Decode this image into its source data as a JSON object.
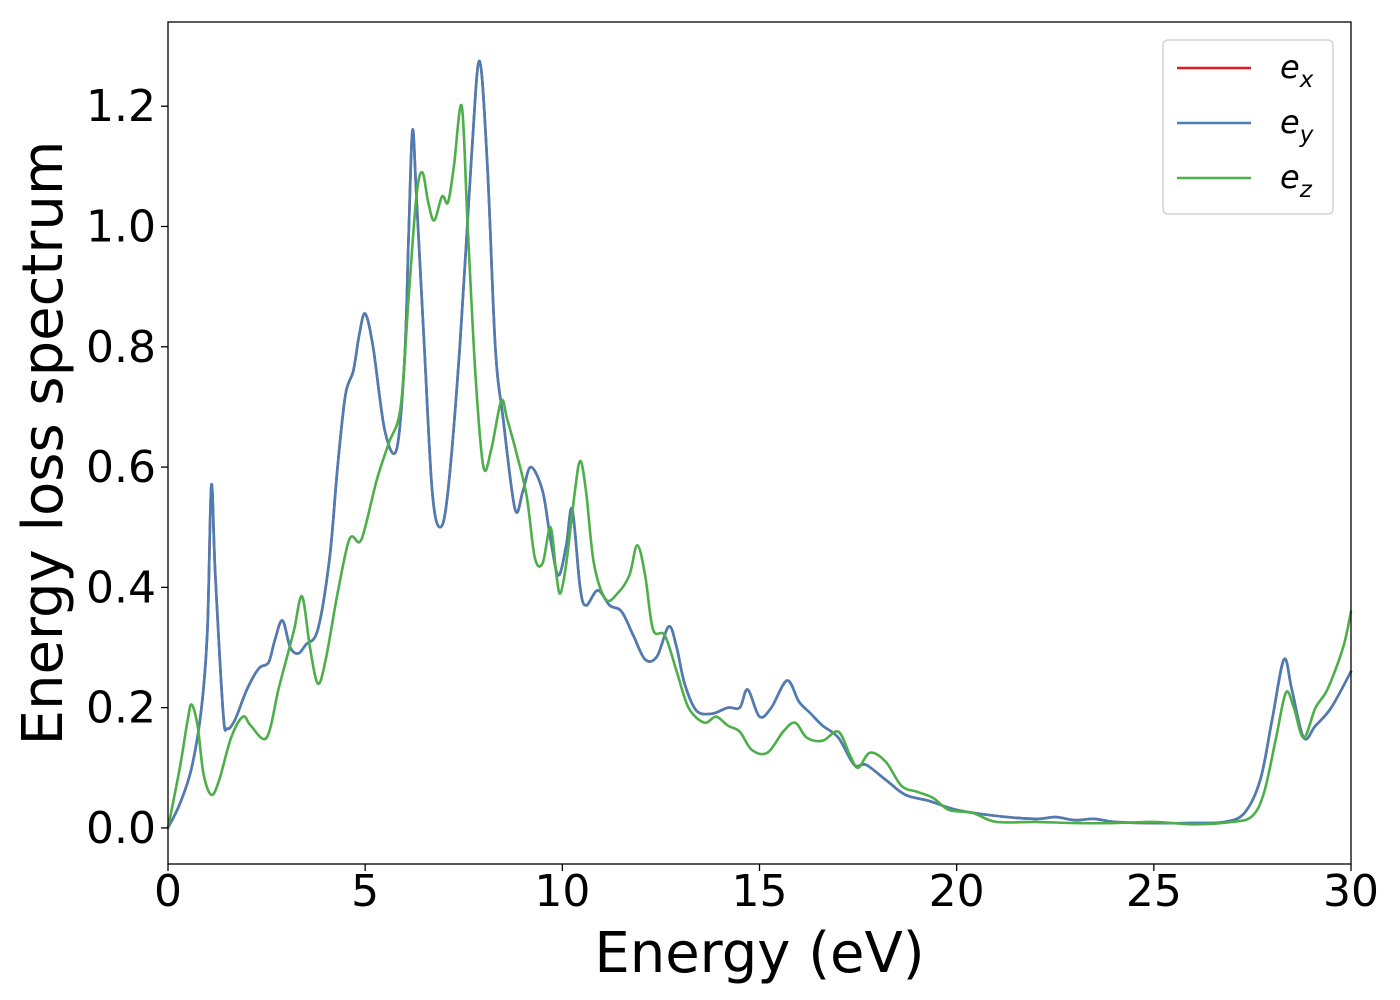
{
  "chart_data": {
    "type": "line",
    "xlabel": "Energy (eV)",
    "ylabel": "Energy loss spectrum",
    "xlim": [
      0,
      30
    ],
    "ylim": [
      -0.06,
      1.34
    ],
    "xticks": [
      0,
      5,
      10,
      15,
      20,
      25,
      30
    ],
    "xtick_labels": [
      "0",
      "5",
      "10",
      "15",
      "20",
      "25",
      "30"
    ],
    "yticks": [
      0.0,
      0.2,
      0.4,
      0.6,
      0.8,
      1.0,
      1.2
    ],
    "ytick_labels": [
      "0.0",
      "0.2",
      "0.4",
      "0.6",
      "0.8",
      "1.0",
      "1.2"
    ],
    "grid": false,
    "legend_position": "top-right",
    "series": [
      {
        "name": "e_x",
        "legend_base": "e",
        "legend_sub": "x",
        "color": "#e41a1c",
        "points": [
          [
            0,
            0
          ],
          [
            0.3,
            0.04
          ],
          [
            0.6,
            0.1
          ],
          [
            0.85,
            0.2
          ],
          [
            1.0,
            0.33
          ],
          [
            1.1,
            0.57
          ],
          [
            1.2,
            0.42
          ],
          [
            1.4,
            0.19
          ],
          [
            1.5,
            0.165
          ],
          [
            1.7,
            0.18
          ],
          [
            2.0,
            0.23
          ],
          [
            2.3,
            0.265
          ],
          [
            2.55,
            0.275
          ],
          [
            2.7,
            0.31
          ],
          [
            2.9,
            0.345
          ],
          [
            3.1,
            0.3
          ],
          [
            3.3,
            0.29
          ],
          [
            3.5,
            0.305
          ],
          [
            3.8,
            0.33
          ],
          [
            4.1,
            0.45
          ],
          [
            4.3,
            0.6
          ],
          [
            4.5,
            0.72
          ],
          [
            4.7,
            0.76
          ],
          [
            4.85,
            0.82
          ],
          [
            5.0,
            0.855
          ],
          [
            5.2,
            0.8
          ],
          [
            5.5,
            0.66
          ],
          [
            5.8,
            0.63
          ],
          [
            6.0,
            0.78
          ],
          [
            6.1,
            0.98
          ],
          [
            6.2,
            1.16
          ],
          [
            6.3,
            1.05
          ],
          [
            6.5,
            0.8
          ],
          [
            6.7,
            0.56
          ],
          [
            6.9,
            0.5
          ],
          [
            7.1,
            0.56
          ],
          [
            7.4,
            0.8
          ],
          [
            7.7,
            1.12
          ],
          [
            7.9,
            1.275
          ],
          [
            8.1,
            1.1
          ],
          [
            8.3,
            0.8
          ],
          [
            8.5,
            0.68
          ],
          [
            8.8,
            0.53
          ],
          [
            9.0,
            0.56
          ],
          [
            9.2,
            0.6
          ],
          [
            9.5,
            0.56
          ],
          [
            9.7,
            0.48
          ],
          [
            9.9,
            0.42
          ],
          [
            10.1,
            0.47
          ],
          [
            10.25,
            0.53
          ],
          [
            10.45,
            0.4
          ],
          [
            10.6,
            0.37
          ],
          [
            10.9,
            0.395
          ],
          [
            11.2,
            0.37
          ],
          [
            11.5,
            0.36
          ],
          [
            11.8,
            0.32
          ],
          [
            12.1,
            0.28
          ],
          [
            12.4,
            0.285
          ],
          [
            12.7,
            0.335
          ],
          [
            12.9,
            0.3
          ],
          [
            13.1,
            0.24
          ],
          [
            13.4,
            0.195
          ],
          [
            13.8,
            0.19
          ],
          [
            14.2,
            0.2
          ],
          [
            14.5,
            0.2
          ],
          [
            14.7,
            0.23
          ],
          [
            15.0,
            0.185
          ],
          [
            15.3,
            0.2
          ],
          [
            15.7,
            0.245
          ],
          [
            16.0,
            0.21
          ],
          [
            16.3,
            0.19
          ],
          [
            16.6,
            0.17
          ],
          [
            17.0,
            0.15
          ],
          [
            17.4,
            0.105
          ],
          [
            17.7,
            0.105
          ],
          [
            18.2,
            0.08
          ],
          [
            18.7,
            0.055
          ],
          [
            19.3,
            0.045
          ],
          [
            20.0,
            0.03
          ],
          [
            21.0,
            0.02
          ],
          [
            22.0,
            0.015
          ],
          [
            22.5,
            0.018
          ],
          [
            23.0,
            0.013
          ],
          [
            23.5,
            0.015
          ],
          [
            24.0,
            0.01
          ],
          [
            25.0,
            0.008
          ],
          [
            26.0,
            0.008
          ],
          [
            26.8,
            0.01
          ],
          [
            27.3,
            0.025
          ],
          [
            27.7,
            0.08
          ],
          [
            28.0,
            0.18
          ],
          [
            28.3,
            0.28
          ],
          [
            28.5,
            0.23
          ],
          [
            28.8,
            0.15
          ],
          [
            29.1,
            0.17
          ],
          [
            29.5,
            0.2
          ],
          [
            30.0,
            0.26
          ]
        ]
      },
      {
        "name": "e_y",
        "legend_base": "e",
        "legend_sub": "y",
        "color": "#4a7fb5",
        "points": [
          [
            0,
            0
          ],
          [
            0.3,
            0.04
          ],
          [
            0.6,
            0.1
          ],
          [
            0.85,
            0.2
          ],
          [
            1.0,
            0.33
          ],
          [
            1.1,
            0.57
          ],
          [
            1.2,
            0.42
          ],
          [
            1.4,
            0.19
          ],
          [
            1.5,
            0.165
          ],
          [
            1.7,
            0.18
          ],
          [
            2.0,
            0.23
          ],
          [
            2.3,
            0.265
          ],
          [
            2.55,
            0.275
          ],
          [
            2.7,
            0.31
          ],
          [
            2.9,
            0.345
          ],
          [
            3.1,
            0.3
          ],
          [
            3.3,
            0.29
          ],
          [
            3.5,
            0.305
          ],
          [
            3.8,
            0.33
          ],
          [
            4.1,
            0.45
          ],
          [
            4.3,
            0.6
          ],
          [
            4.5,
            0.72
          ],
          [
            4.7,
            0.76
          ],
          [
            4.85,
            0.82
          ],
          [
            5.0,
            0.855
          ],
          [
            5.2,
            0.8
          ],
          [
            5.5,
            0.66
          ],
          [
            5.8,
            0.63
          ],
          [
            6.0,
            0.78
          ],
          [
            6.1,
            0.98
          ],
          [
            6.2,
            1.16
          ],
          [
            6.3,
            1.05
          ],
          [
            6.5,
            0.8
          ],
          [
            6.7,
            0.56
          ],
          [
            6.9,
            0.5
          ],
          [
            7.1,
            0.56
          ],
          [
            7.4,
            0.8
          ],
          [
            7.7,
            1.12
          ],
          [
            7.9,
            1.275
          ],
          [
            8.1,
            1.1
          ],
          [
            8.3,
            0.8
          ],
          [
            8.5,
            0.68
          ],
          [
            8.8,
            0.53
          ],
          [
            9.0,
            0.56
          ],
          [
            9.2,
            0.6
          ],
          [
            9.5,
            0.56
          ],
          [
            9.7,
            0.48
          ],
          [
            9.9,
            0.42
          ],
          [
            10.1,
            0.47
          ],
          [
            10.25,
            0.53
          ],
          [
            10.45,
            0.4
          ],
          [
            10.6,
            0.37
          ],
          [
            10.9,
            0.395
          ],
          [
            11.2,
            0.37
          ],
          [
            11.5,
            0.36
          ],
          [
            11.8,
            0.32
          ],
          [
            12.1,
            0.28
          ],
          [
            12.4,
            0.285
          ],
          [
            12.7,
            0.335
          ],
          [
            12.9,
            0.3
          ],
          [
            13.1,
            0.24
          ],
          [
            13.4,
            0.195
          ],
          [
            13.8,
            0.19
          ],
          [
            14.2,
            0.2
          ],
          [
            14.5,
            0.2
          ],
          [
            14.7,
            0.23
          ],
          [
            15.0,
            0.185
          ],
          [
            15.3,
            0.2
          ],
          [
            15.7,
            0.245
          ],
          [
            16.0,
            0.21
          ],
          [
            16.3,
            0.19
          ],
          [
            16.6,
            0.17
          ],
          [
            17.0,
            0.15
          ],
          [
            17.4,
            0.105
          ],
          [
            17.7,
            0.105
          ],
          [
            18.2,
            0.08
          ],
          [
            18.7,
            0.055
          ],
          [
            19.3,
            0.045
          ],
          [
            20.0,
            0.03
          ],
          [
            21.0,
            0.02
          ],
          [
            22.0,
            0.015
          ],
          [
            22.5,
            0.018
          ],
          [
            23.0,
            0.013
          ],
          [
            23.5,
            0.015
          ],
          [
            24.0,
            0.01
          ],
          [
            25.0,
            0.008
          ],
          [
            26.0,
            0.008
          ],
          [
            26.8,
            0.01
          ],
          [
            27.3,
            0.025
          ],
          [
            27.7,
            0.08
          ],
          [
            28.0,
            0.18
          ],
          [
            28.3,
            0.28
          ],
          [
            28.5,
            0.23
          ],
          [
            28.8,
            0.15
          ],
          [
            29.1,
            0.17
          ],
          [
            29.5,
            0.2
          ],
          [
            30.0,
            0.26
          ]
        ]
      },
      {
        "name": "e_z",
        "legend_base": "e",
        "legend_sub": "z",
        "color": "#4daf4a",
        "points": [
          [
            0,
            0
          ],
          [
            0.3,
            0.1
          ],
          [
            0.5,
            0.18
          ],
          [
            0.6,
            0.205
          ],
          [
            0.75,
            0.17
          ],
          [
            0.9,
            0.09
          ],
          [
            1.1,
            0.055
          ],
          [
            1.3,
            0.08
          ],
          [
            1.6,
            0.15
          ],
          [
            1.9,
            0.185
          ],
          [
            2.1,
            0.17
          ],
          [
            2.5,
            0.15
          ],
          [
            2.8,
            0.23
          ],
          [
            3.0,
            0.28
          ],
          [
            3.2,
            0.33
          ],
          [
            3.4,
            0.385
          ],
          [
            3.6,
            0.3
          ],
          [
            3.8,
            0.24
          ],
          [
            4.0,
            0.28
          ],
          [
            4.3,
            0.39
          ],
          [
            4.6,
            0.48
          ],
          [
            4.85,
            0.475
          ],
          [
            5.0,
            0.5
          ],
          [
            5.3,
            0.58
          ],
          [
            5.6,
            0.64
          ],
          [
            5.9,
            0.7
          ],
          [
            6.1,
            0.88
          ],
          [
            6.3,
            1.05
          ],
          [
            6.45,
            1.09
          ],
          [
            6.6,
            1.04
          ],
          [
            6.75,
            1.01
          ],
          [
            6.95,
            1.05
          ],
          [
            7.1,
            1.04
          ],
          [
            7.25,
            1.1
          ],
          [
            7.45,
            1.2
          ],
          [
            7.6,
            1.0
          ],
          [
            7.8,
            0.75
          ],
          [
            8.0,
            0.6
          ],
          [
            8.2,
            0.63
          ],
          [
            8.45,
            0.71
          ],
          [
            8.6,
            0.68
          ],
          [
            8.85,
            0.62
          ],
          [
            9.1,
            0.55
          ],
          [
            9.3,
            0.45
          ],
          [
            9.5,
            0.44
          ],
          [
            9.7,
            0.5
          ],
          [
            9.85,
            0.42
          ],
          [
            9.95,
            0.39
          ],
          [
            10.1,
            0.44
          ],
          [
            10.3,
            0.55
          ],
          [
            10.45,
            0.61
          ],
          [
            10.6,
            0.56
          ],
          [
            10.8,
            0.44
          ],
          [
            11.1,
            0.38
          ],
          [
            11.4,
            0.39
          ],
          [
            11.7,
            0.42
          ],
          [
            11.9,
            0.47
          ],
          [
            12.1,
            0.42
          ],
          [
            12.3,
            0.33
          ],
          [
            12.6,
            0.32
          ],
          [
            12.9,
            0.26
          ],
          [
            13.2,
            0.2
          ],
          [
            13.6,
            0.175
          ],
          [
            13.9,
            0.185
          ],
          [
            14.2,
            0.17
          ],
          [
            14.5,
            0.16
          ],
          [
            14.8,
            0.13
          ],
          [
            15.2,
            0.125
          ],
          [
            15.6,
            0.16
          ],
          [
            15.9,
            0.175
          ],
          [
            16.2,
            0.15
          ],
          [
            16.6,
            0.145
          ],
          [
            17.0,
            0.16
          ],
          [
            17.3,
            0.12
          ],
          [
            17.5,
            0.1
          ],
          [
            17.8,
            0.125
          ],
          [
            18.2,
            0.11
          ],
          [
            18.6,
            0.07
          ],
          [
            19.0,
            0.06
          ],
          [
            19.4,
            0.05
          ],
          [
            19.8,
            0.03
          ],
          [
            20.4,
            0.025
          ],
          [
            21.0,
            0.01
          ],
          [
            22.0,
            0.01
          ],
          [
            23.0,
            0.008
          ],
          [
            24.0,
            0.008
          ],
          [
            25.0,
            0.01
          ],
          [
            26.0,
            0.006
          ],
          [
            27.0,
            0.01
          ],
          [
            27.5,
            0.02
          ],
          [
            27.8,
            0.06
          ],
          [
            28.1,
            0.15
          ],
          [
            28.35,
            0.225
          ],
          [
            28.55,
            0.2
          ],
          [
            28.8,
            0.15
          ],
          [
            29.1,
            0.2
          ],
          [
            29.4,
            0.23
          ],
          [
            29.8,
            0.3
          ],
          [
            30.0,
            0.36
          ]
        ]
      }
    ]
  }
}
